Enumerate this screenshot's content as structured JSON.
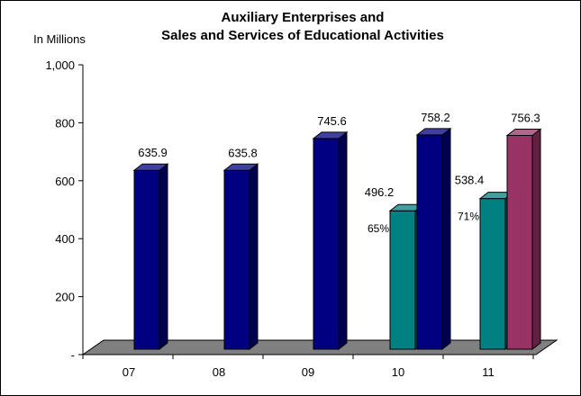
{
  "chart_data": {
    "type": "bar",
    "title_lines": [
      "Auxiliary Enterprises and",
      "Sales and Services of Educational Activities"
    ],
    "ylabel": "In Millions",
    "ylim": [
      0,
      1000
    ],
    "yticks": [
      {
        "value": 0,
        "label": "-"
      },
      {
        "value": 200,
        "label": "200"
      },
      {
        "value": 400,
        "label": "400"
      },
      {
        "value": 600,
        "label": "600"
      },
      {
        "value": 800,
        "label": "800"
      },
      {
        "value": 1000,
        "label": "1,000"
      }
    ],
    "categories": [
      "07",
      "08",
      "09",
      "10",
      "11"
    ],
    "bars": [
      {
        "category": "07",
        "value": 635.9,
        "label": "635.9",
        "color": "#000080",
        "slot": "single"
      },
      {
        "category": "08",
        "value": 635.8,
        "label": "635.8",
        "color": "#000080",
        "slot": "single"
      },
      {
        "category": "09",
        "value": 745.6,
        "label": "745.6",
        "color": "#000080",
        "slot": "single"
      },
      {
        "category": "10",
        "value": 496.2,
        "label": "496.2",
        "color": "#008080",
        "slot": "left",
        "pct_label": "65%"
      },
      {
        "category": "10",
        "value": 758.2,
        "label": "758.2",
        "color": "#000080",
        "slot": "right"
      },
      {
        "category": "11",
        "value": 538.4,
        "label": "538.4",
        "color": "#008080",
        "slot": "left",
        "pct_label": "71%"
      },
      {
        "category": "11",
        "value": 756.3,
        "label": "756.3",
        "color": "#993366",
        "slot": "right"
      }
    ],
    "grid": false,
    "legend": "none",
    "floor_color": "#808080"
  }
}
